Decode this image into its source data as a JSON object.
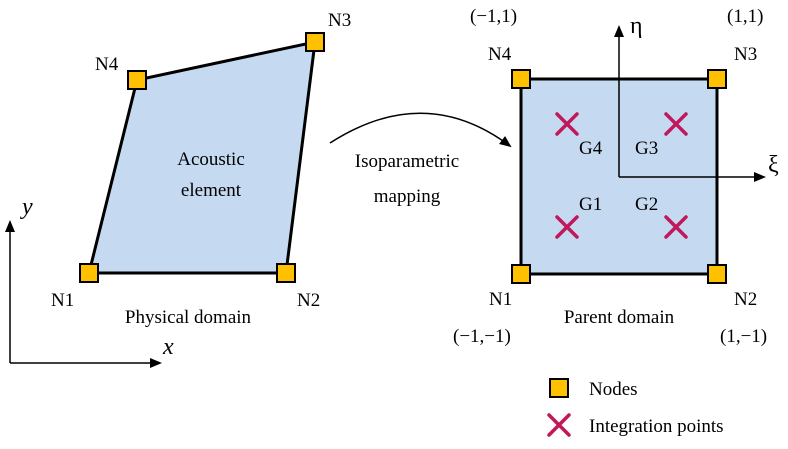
{
  "physical": {
    "element_label_line1": "Acoustic",
    "element_label_line2": "element",
    "domain_label": "Physical domain",
    "axis_x": "x",
    "axis_y": "y",
    "nodes": [
      "N1",
      "N2",
      "N3",
      "N4"
    ]
  },
  "mapping": {
    "label_line1": "Isoparametric",
    "label_line2": "mapping"
  },
  "parent": {
    "domain_label": "Parent domain",
    "axis_xi": "ξ",
    "axis_eta": "η",
    "nodes": [
      "N1",
      "N2",
      "N3",
      "N4"
    ],
    "coords": [
      "(−1,−1)",
      "(1,−1)",
      "(1,1)",
      "(−1,1)"
    ],
    "gauss_points": [
      "G1",
      "G2",
      "G3",
      "G4"
    ]
  },
  "legend": {
    "nodes_label": "Nodes",
    "integration_label": "Integration points"
  },
  "colors": {
    "element_fill": "#c5d9f1",
    "node_fill": "#ffc000",
    "gauss_mark": "#c0185a",
    "stroke": "#000000"
  }
}
